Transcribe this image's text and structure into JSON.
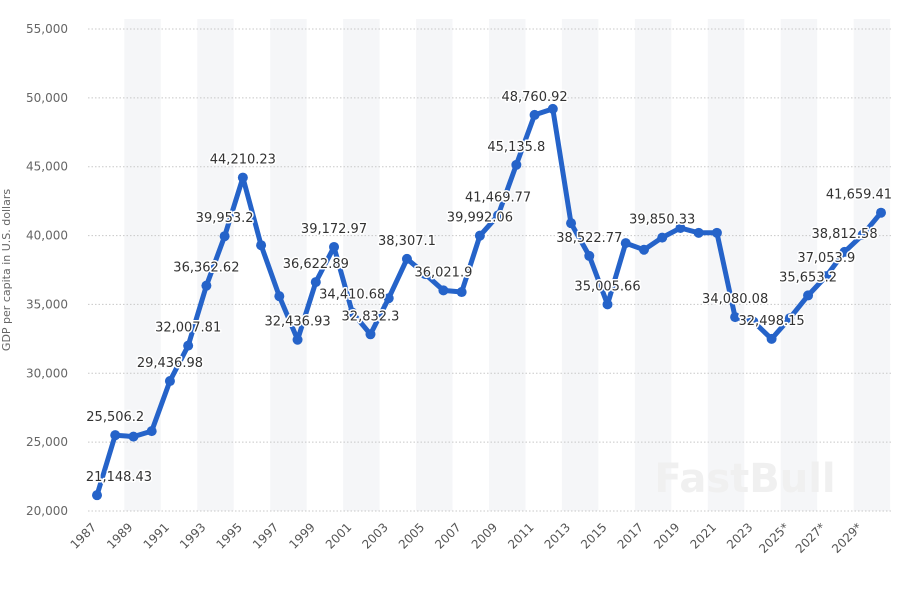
{
  "chart_data": {
    "type": "line",
    "title": "",
    "xlabel": "",
    "ylabel": "GDP per capita in U.S. dollars",
    "ylim": [
      20000,
      55000
    ],
    "yticks": [
      "20,000",
      "25,000",
      "30,000",
      "35,000",
      "40,000",
      "45,000",
      "50,000",
      "55,000"
    ],
    "ytick_values": [
      20000,
      25000,
      30000,
      35000,
      40000,
      45000,
      50000,
      55000
    ],
    "grid": "horizontal dotted",
    "legend": "none",
    "line_color": "#2563c9",
    "x": [
      1987,
      1988,
      1989,
      1990,
      1991,
      1992,
      1993,
      1994,
      1995,
      1996,
      1997,
      1998,
      1999,
      2000,
      2001,
      2002,
      2003,
      2004,
      2005,
      2006,
      2007,
      2008,
      2009,
      2010,
      2011,
      2012,
      2013,
      2014,
      2015,
      2016,
      2017,
      2018,
      2019,
      2020,
      2021,
      2022,
      2023,
      2024,
      2025,
      2026,
      2027,
      2028,
      2029,
      2030
    ],
    "xtick_labels": [
      "1987",
      "1989",
      "1991",
      "1993",
      "1995",
      "1997",
      "1999",
      "2001",
      "2003",
      "2005",
      "2007",
      "2009",
      "2011",
      "2013",
      "2015",
      "2017",
      "2019",
      "2021",
      "2023",
      "2025*",
      "2027*",
      "2029*"
    ],
    "xtick_years": [
      1987,
      1989,
      1991,
      1993,
      1995,
      1997,
      1999,
      2001,
      2003,
      2005,
      2007,
      2009,
      2011,
      2013,
      2015,
      2017,
      2019,
      2021,
      2023,
      2025,
      2027,
      2029
    ],
    "values": [
      21148.43,
      25506.2,
      25400,
      25800,
      29436.98,
      32007.81,
      36362.62,
      39953.2,
      44210.23,
      39300,
      35600,
      32436.93,
      36622.89,
      39172.97,
      34410.68,
      32832.3,
      35450,
      38307.1,
      37200,
      36021.9,
      35900,
      39992.06,
      41469.77,
      45135.8,
      48760.92,
      49200,
      40900,
      38522.77,
      35005.66,
      39450,
      38970,
      39850.33,
      40550,
      40200,
      40200,
      34080.08,
      33750,
      32498.15,
      34000,
      35653.2,
      37053.9,
      38812.58,
      40060,
      41659.41
    ],
    "data_labels": [
      "21,148.43",
      "25,506.2",
      null,
      null,
      "29,436.98",
      "32,007.81",
      "36,362.62",
      "39,953.2",
      "44,210.23",
      null,
      null,
      "32,436.93",
      "36,622.89",
      "39,172.97",
      "34,410.68",
      "32,832.3",
      null,
      "38,307.1",
      null,
      "36,021.9",
      null,
      "39,992.06",
      "41,469.77",
      "45,135.8",
      "48,760.92",
      null,
      null,
      "38,522.77",
      "35,005.66",
      null,
      null,
      "39,850.33",
      null,
      null,
      null,
      "34,080.08",
      null,
      "32,498.15",
      null,
      "35,653.2",
      "37,053.9",
      "38,812.58",
      null,
      "41,659.41"
    ],
    "watermark": "FastBull"
  }
}
